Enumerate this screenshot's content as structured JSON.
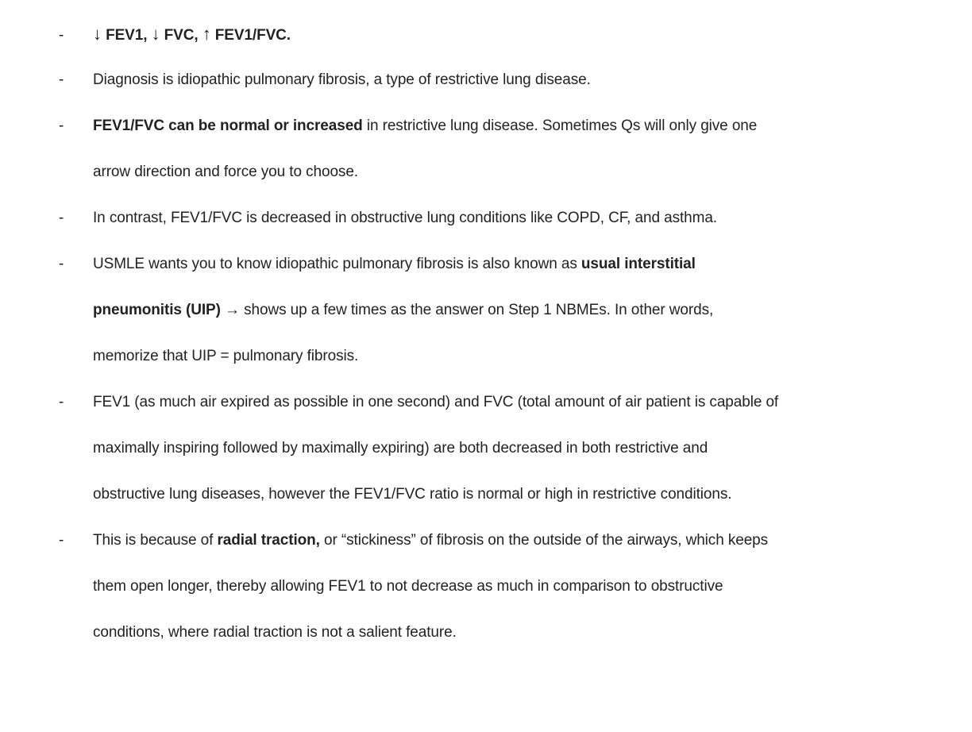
{
  "bullet_marker": "-",
  "bullets": {
    "b1": {
      "down1": "↓",
      "part1": " FEV1, ",
      "down2": "↓",
      "part2": " FVC, ",
      "up": "↑",
      "part3": " FEV1/FVC."
    },
    "b2": {
      "text": "Diagnosis is idiopathic pulmonary fibrosis, a type of restrictive lung disease."
    },
    "b3": {
      "bold": "FEV1/FVC can be normal or increased",
      "rest": " in restrictive lung disease. Sometimes Qs will only give one",
      "line2": "arrow direction and force you to choose."
    },
    "b4": {
      "text": "In contrast, FEV1/FVC is decreased in obstructive lung conditions like COPD, CF, and asthma."
    },
    "b5": {
      "pre": "USMLE wants you to know idiopathic pulmonary fibrosis is also known as ",
      "bold1": "usual interstitial",
      "bold2": "pneumonitis (UIP)",
      "arrow": " → ",
      "rest2": "shows up a few times as the answer on Step 1 NBMEs. In other words,",
      "line3": "memorize that UIP = pulmonary fibrosis."
    },
    "b6": {
      "line1": "FEV1 (as much air expired as possible in one second) and FVC (total amount of air patient is capable of",
      "line2": "maximally inspiring followed by maximally expiring) are both decreased in both restrictive and",
      "line3": "obstructive lung diseases, however the FEV1/FVC ratio is normal or high in restrictive conditions."
    },
    "b7": {
      "pre": "This is because of ",
      "bold": "radial traction,",
      "rest": " or “stickiness” of fibrosis on the outside of the airways, which keeps",
      "line2": "them open longer, thereby allowing FEV1 to not decrease as much in comparison to obstructive",
      "line3": "conditions, where radial traction is not a salient feature."
    }
  }
}
